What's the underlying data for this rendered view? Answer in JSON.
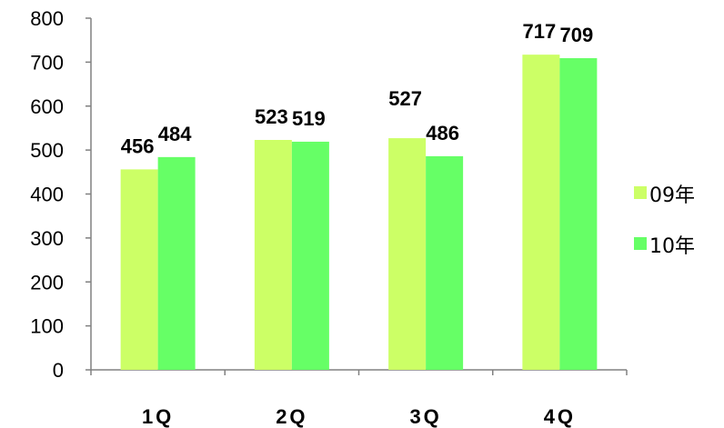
{
  "chart_data": {
    "type": "bar",
    "categories": [
      "1Q",
      "2Q",
      "3Q",
      "4Q"
    ],
    "series": [
      {
        "name": "09年",
        "values": [
          456,
          523,
          527,
          717
        ],
        "color": "#ccff66"
      },
      {
        "name": "10年",
        "values": [
          484,
          519,
          486,
          709
        ],
        "color": "#66ff66"
      }
    ],
    "ylim": [
      0,
      800
    ],
    "yticks": [
      0,
      100,
      200,
      300,
      400,
      500,
      600,
      700,
      800
    ],
    "title": "",
    "xlabel": "",
    "ylabel": "",
    "legend_position": "right",
    "grid": false
  }
}
